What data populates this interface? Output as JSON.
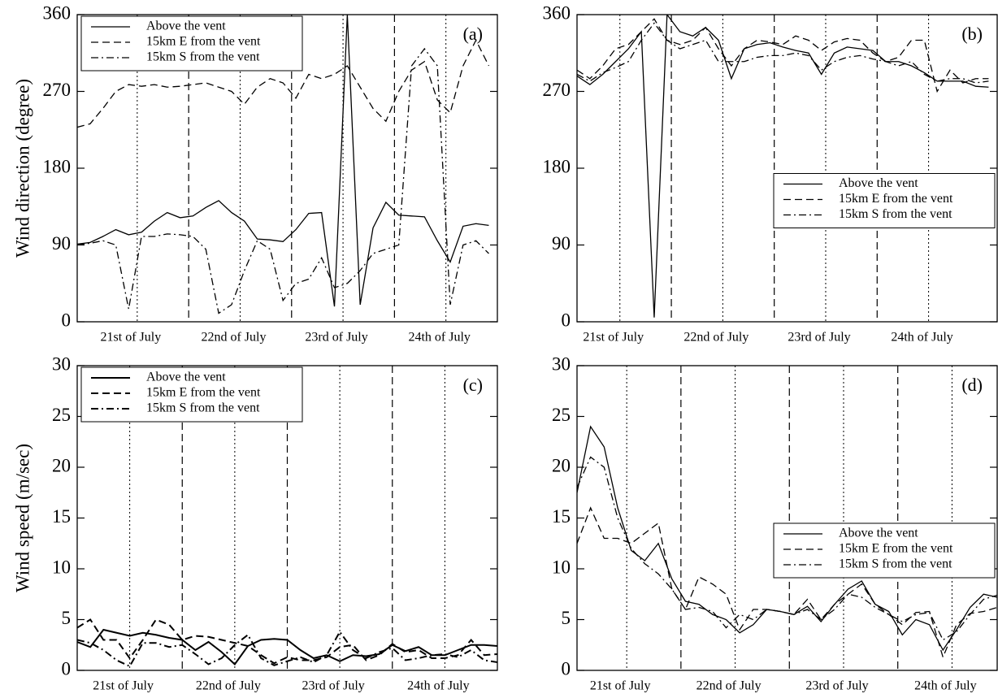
{
  "chart_data": [
    {
      "type": "line",
      "annotation": "(a)",
      "ylabel": "Wind direction (degree)",
      "legend": "upper left",
      "linewidth": 1.3,
      "xlim": [
        -2,
        96
      ],
      "ylim": [
        0,
        360
      ],
      "yticks": [
        0,
        90,
        180,
        270,
        360
      ],
      "xticks": [
        {
          "value": 12,
          "label": "21st of July"
        },
        {
          "value": 36,
          "label": "22nd of July"
        },
        {
          "value": 60,
          "label": "23rd of July"
        },
        {
          "value": 84,
          "label": "24th of July"
        }
      ],
      "dashed_lines": [
        24,
        48,
        72
      ],
      "dotted_lines": [
        12,
        36,
        60,
        84
      ],
      "x": [
        -2,
        1,
        4,
        7,
        10,
        13,
        16,
        19,
        22,
        25,
        28,
        31,
        34,
        37,
        40,
        43,
        46,
        49,
        52,
        55,
        58,
        61,
        64,
        67,
        70,
        73,
        76,
        79,
        82,
        85,
        88,
        91,
        94
      ],
      "series": [
        {
          "name": "Above the vent",
          "color": "#000000",
          "linestyle": "solid",
          "values": [
            91,
            93,
            100,
            108,
            102,
            105,
            118,
            128,
            122,
            124,
            134,
            142,
            128,
            118,
            97,
            96,
            94,
            108,
            127,
            128,
            18,
            360,
            20,
            110,
            140,
            125,
            124,
            123,
            95,
            70,
            112,
            115,
            113
          ]
        },
        {
          "name": "15km E from the vent",
          "color": "#000000",
          "linestyle": "dashed",
          "values": [
            228,
            232,
            250,
            270,
            278,
            276,
            278,
            275,
            276,
            278,
            280,
            275,
            270,
            255,
            275,
            285,
            280,
            262,
            290,
            285,
            290,
            300,
            275,
            250,
            235,
            270,
            295,
            305,
            260,
            245,
            300,
            330,
            300
          ]
        },
        {
          "name": "15km S from the vent",
          "color": "#000000",
          "linestyle": "dashdot",
          "values": [
            90,
            92,
            95,
            90,
            15,
            100,
            100,
            103,
            102,
            100,
            85,
            10,
            20,
            60,
            95,
            85,
            25,
            45,
            50,
            75,
            40,
            45,
            60,
            80,
            85,
            90,
            300,
            320,
            300,
            20,
            90,
            95,
            80
          ]
        }
      ]
    },
    {
      "type": "line",
      "annotation": "(b)",
      "legend": "center right",
      "linewidth": 1.3,
      "xlim": [
        2,
        100
      ],
      "ylim": [
        0,
        360
      ],
      "yticks": [
        0,
        90,
        180,
        270,
        360
      ],
      "xticks": [
        {
          "value": 12,
          "label": "21st of July"
        },
        {
          "value": 36,
          "label": "22nd of July"
        },
        {
          "value": 60,
          "label": "23rd of July"
        },
        {
          "value": 84,
          "label": "24th of July"
        }
      ],
      "dashed_lines": [
        24,
        48,
        72
      ],
      "dotted_lines": [
        12,
        36,
        60,
        84
      ],
      "x": [
        2,
        5,
        8,
        11,
        14,
        17,
        20,
        23,
        26,
        29,
        32,
        35,
        38,
        41,
        44,
        47,
        50,
        53,
        56,
        59,
        62,
        65,
        68,
        71,
        74,
        77,
        80,
        83,
        86,
        89,
        92,
        95,
        98
      ],
      "series": [
        {
          "name": "Above the vent",
          "color": "#000000",
          "linestyle": "solid",
          "values": [
            288,
            278,
            290,
            305,
            320,
            340,
            5,
            360,
            340,
            335,
            345,
            330,
            285,
            320,
            325,
            327,
            322,
            318,
            315,
            290,
            315,
            322,
            320,
            318,
            305,
            305,
            300,
            292,
            282,
            282,
            282,
            276,
            275
          ]
        },
        {
          "name": "15km E from the vent",
          "color": "#000000",
          "linestyle": "dashed",
          "values": [
            295,
            285,
            300,
            320,
            325,
            340,
            355,
            330,
            325,
            330,
            345,
            320,
            300,
            320,
            330,
            328,
            325,
            335,
            330,
            318,
            328,
            332,
            330,
            315,
            305,
            310,
            330,
            330,
            270,
            295,
            280,
            285,
            285
          ]
        },
        {
          "name": "15km S from the vent",
          "color": "#000000",
          "linestyle": "dashdot",
          "values": [
            290,
            282,
            292,
            298,
            305,
            330,
            350,
            330,
            320,
            325,
            330,
            305,
            305,
            305,
            310,
            312,
            312,
            315,
            312,
            295,
            305,
            310,
            312,
            308,
            305,
            300,
            305,
            290,
            282,
            285,
            285,
            280,
            282
          ]
        }
      ]
    },
    {
      "type": "line",
      "annotation": "(c)",
      "ylabel": "Wind speed (m/sec)",
      "legend": "upper left",
      "linewidth": 2,
      "xlim": [
        0,
        96
      ],
      "ylim": [
        0,
        30
      ],
      "yticks": [
        0,
        5,
        10,
        15,
        20,
        25,
        30
      ],
      "xticks": [
        {
          "value": 12,
          "label": "21st of July"
        },
        {
          "value": 36,
          "label": "22nd of July"
        },
        {
          "value": 60,
          "label": "23rd of July"
        },
        {
          "value": 84,
          "label": "24th of July"
        }
      ],
      "dashed_lines": [
        24,
        48,
        72
      ],
      "dotted_lines": [
        12,
        36,
        60,
        84
      ],
      "x": [
        0,
        3,
        6,
        9,
        12,
        15,
        18,
        21,
        24,
        27,
        30,
        33,
        36,
        39,
        42,
        45,
        48,
        51,
        54,
        57,
        60,
        63,
        66,
        69,
        72,
        75,
        78,
        81,
        84,
        87,
        90,
        93,
        96
      ],
      "series": [
        {
          "name": "Above the vent",
          "color": "#000000",
          "linestyle": "solid",
          "values": [
            2.8,
            2.3,
            4.0,
            3.7,
            3.4,
            3.7,
            3.5,
            3.2,
            3.0,
            2.0,
            2.8,
            1.8,
            0.6,
            2.4,
            3.0,
            3.1,
            3.0,
            2.0,
            1.2,
            1.5,
            0.9,
            1.5,
            1.4,
            1.6,
            2.5,
            1.9,
            2.3,
            1.5,
            1.5,
            2.0,
            2.5,
            2.5,
            2.4
          ]
        },
        {
          "name": "15km E from the vent",
          "color": "#000000",
          "linestyle": "dashed",
          "values": [
            4.2,
            5.0,
            3.0,
            3.0,
            1.2,
            3.0,
            5.0,
            4.5,
            3.0,
            3.4,
            3.3,
            3.0,
            2.7,
            2.4,
            1.5,
            0.7,
            1.3,
            1.0,
            1.0,
            1.3,
            2.3,
            2.5,
            1.0,
            1.5,
            2.6,
            1.8,
            2.0,
            1.2,
            1.2,
            1.5,
            3.0,
            1.5,
            1.6
          ]
        },
        {
          "name": "15km S from the vent",
          "color": "#000000",
          "linestyle": "dashdot",
          "values": [
            3.0,
            2.7,
            2.0,
            1.0,
            0.4,
            2.7,
            2.7,
            2.3,
            2.5,
            1.6,
            0.6,
            1.2,
            2.5,
            3.5,
            1.2,
            0.5,
            0.9,
            1.3,
            0.8,
            1.5,
            3.8,
            2.0,
            1.2,
            1.8,
            2.2,
            1.0,
            1.2,
            1.5,
            1.6,
            1.3,
            2.0,
            1.0,
            0.8
          ]
        }
      ]
    },
    {
      "type": "line",
      "annotation": "(d)",
      "legend": "center right",
      "linewidth": 1.3,
      "xlim": [
        1,
        94
      ],
      "ylim": [
        0,
        30
      ],
      "yticks": [
        0,
        5,
        10,
        15,
        20,
        25,
        30
      ],
      "xticks": [
        {
          "value": 12,
          "label": "21st of July"
        },
        {
          "value": 36,
          "label": "22nd of July"
        },
        {
          "value": 60,
          "label": "23rd of July"
        },
        {
          "value": 84,
          "label": "24th of July"
        }
      ],
      "dashed_lines": [
        24,
        48,
        72
      ],
      "dotted_lines": [
        12,
        36,
        60,
        84
      ],
      "x": [
        1,
        4,
        7,
        10,
        13,
        16,
        19,
        22,
        25,
        28,
        31,
        34,
        37,
        40,
        43,
        46,
        49,
        52,
        55,
        58,
        61,
        64,
        67,
        70,
        73,
        76,
        79,
        82,
        85,
        88,
        91,
        94
      ],
      "series": [
        {
          "name": "Above the vent",
          "color": "#000000",
          "linestyle": "solid",
          "values": [
            17.5,
            24,
            22,
            16,
            11.8,
            10.8,
            12.5,
            9,
            6.8,
            6.5,
            5.5,
            5,
            3.7,
            4.5,
            6,
            5.8,
            5.5,
            6.3,
            4.8,
            6.5,
            8,
            8.8,
            6.5,
            5.8,
            3.5,
            5,
            4.5,
            2,
            4,
            6.2,
            7.5,
            7.2
          ]
        },
        {
          "name": "15km E from the vent",
          "color": "#000000",
          "linestyle": "dashed",
          "values": [
            12.5,
            16,
            13,
            13,
            12.5,
            13.5,
            14.5,
            8,
            6,
            9.2,
            8.5,
            7.5,
            4,
            6,
            6,
            5.8,
            5.5,
            7,
            5,
            6.5,
            7.5,
            8.5,
            6.5,
            5.5,
            4.5,
            5.7,
            5.8,
            1.3,
            4.5,
            5.6,
            5.8,
            6.2
          ]
        },
        {
          "name": "15km S from the vent",
          "color": "#000000",
          "linestyle": "dashdot",
          "values": [
            18,
            21,
            20,
            15,
            12,
            10.5,
            9.5,
            8,
            6,
            6.2,
            5.8,
            4.2,
            5.5,
            5,
            6,
            5.8,
            5.5,
            6,
            5,
            6,
            7.5,
            7.2,
            6.2,
            5.5,
            4.8,
            5.5,
            5.7,
            3,
            3.8,
            5.5,
            7,
            7.4
          ]
        }
      ]
    }
  ]
}
